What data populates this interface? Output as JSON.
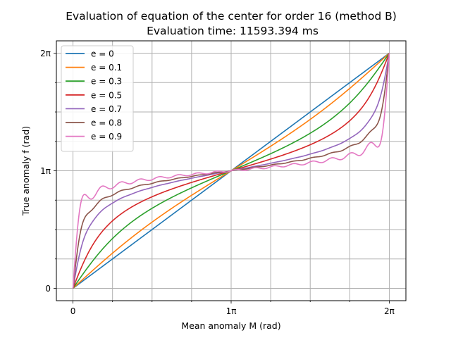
{
  "chart_data": {
    "type": "line",
    "title": "Evaluation of equation of the center for order 16 (method B)",
    "subtitle": "Evaluation time: 11593.394 ms",
    "xlabel": "Mean anomaly M (rad)",
    "ylabel": "True anomaly f (rad)",
    "xlim": [
      -0.3299,
      6.6131
    ],
    "ylim": [
      -0.3299,
      6.6131
    ],
    "x_ticks": [
      {
        "value": 0,
        "label": "0"
      },
      {
        "value": 3.14159,
        "label": "1π"
      },
      {
        "value": 6.28319,
        "label": "2π"
      }
    ],
    "y_ticks": [
      {
        "value": 0,
        "label": "0"
      },
      {
        "value": 3.14159,
        "label": "1π"
      },
      {
        "value": 6.28319,
        "label": "2π"
      }
    ],
    "minor_ticks": [
      0.7854,
      1.5708,
      2.3562,
      3.927,
      4.7124,
      5.4978
    ],
    "grid": true,
    "legend_position": "top-left",
    "series": [
      {
        "name": "e = 0",
        "e": 0.0,
        "color": "#1f77b4"
      },
      {
        "name": "e = 0.1",
        "e": 0.1,
        "color": "#ff7f0e"
      },
      {
        "name": "e = 0.3",
        "e": 0.3,
        "color": "#2ca02c"
      },
      {
        "name": "e = 0.5",
        "e": 0.5,
        "color": "#d62728"
      },
      {
        "name": "e = 0.7",
        "e": 0.7,
        "color": "#9467bd"
      },
      {
        "name": "e = 0.8",
        "e": 0.8,
        "color": "#8c564b"
      },
      {
        "name": "e = 0.9",
        "e": 0.9,
        "color": "#e377c2"
      }
    ],
    "series_model": {
      "method": "fourier_series_equation_of_center",
      "order": 16,
      "samples": 600
    }
  }
}
